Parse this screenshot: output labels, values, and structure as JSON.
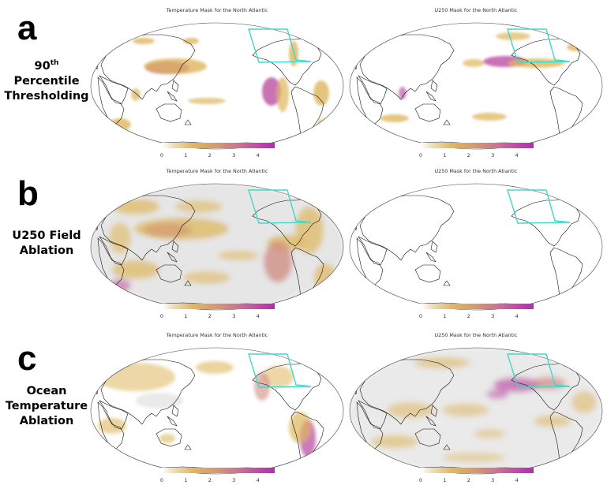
{
  "rows": [
    {
      "letter": "a",
      "label_lines": [
        "90",
        "Percentile",
        "Thresholding"
      ],
      "label_sup": "th",
      "maps": [
        {
          "title": "Temperature Mask for the North Atlantic"
        },
        {
          "title": "U250 Mask for the North Atlantic"
        }
      ]
    },
    {
      "letter": "b",
      "label_lines": [
        "U250 Field",
        "Ablation"
      ],
      "maps": [
        {
          "title": "Temperature Mask for the North Atlantic"
        },
        {
          "title": "U250 Mask for the North Atlantic"
        }
      ]
    },
    {
      "letter": "c",
      "label_lines": [
        "Ocean",
        "Temperature",
        "Ablation"
      ],
      "maps": [
        {
          "title": "Temperature Mask for the North Atlantic"
        },
        {
          "title": "U250 Mask for the North Atlantic"
        }
      ]
    }
  ],
  "colorbar": {
    "ticks": [
      "0",
      "1",
      "2",
      "3",
      "4"
    ],
    "tick_values": [
      0,
      1,
      2,
      3,
      4
    ],
    "range": [
      0,
      4.7
    ],
    "colors": [
      "#ffffff",
      "#e0b761",
      "#d49a6e",
      "#cc7392",
      "#b22cb2"
    ]
  },
  "region_box_color": "#40d8c8"
}
